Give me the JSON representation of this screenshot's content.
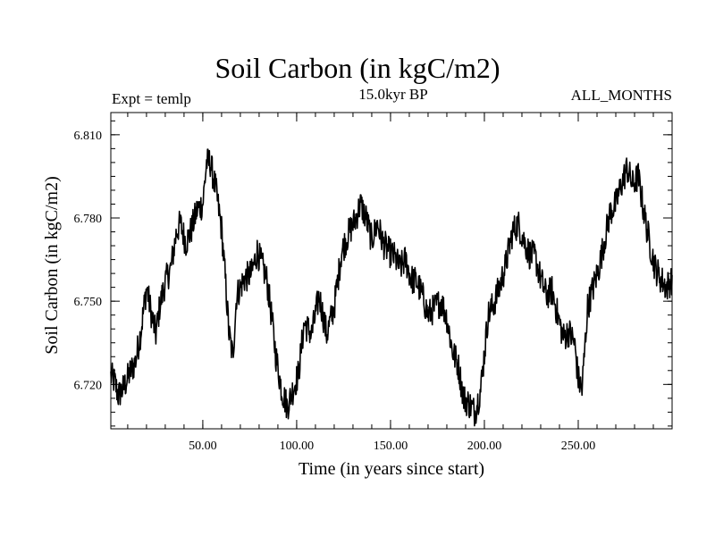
{
  "header": {
    "title": "Soil Carbon (in kgC/m2)",
    "expt": "Expt = temlp",
    "subtitle": "15.0kyr BP",
    "months": "ALL_MONTHS"
  },
  "chart_data": {
    "type": "line",
    "title": "Soil Carbon (in kgC/m2)",
    "xlabel": "Time (in years since start)",
    "ylabel": "Soil Carbon (in kgC/m2)",
    "xlim": [
      1,
      300
    ],
    "ylim": [
      6.704,
      6.818
    ],
    "xticks": [
      50,
      100,
      150,
      200,
      250
    ],
    "xtick_labels": [
      "50.00",
      "100.00",
      "150.00",
      "200.00",
      "250.00"
    ],
    "yticks": [
      6.72,
      6.75,
      6.78,
      6.81
    ],
    "ytick_labels": [
      "6.720",
      "6.750",
      "6.780",
      "6.810"
    ],
    "grid": false,
    "line_color": "#000000",
    "series": [
      {
        "x": [
          1,
          3,
          5,
          8,
          11,
          14,
          17,
          20,
          23,
          25,
          27,
          30,
          33,
          36,
          38,
          41,
          44,
          47,
          50,
          52,
          54,
          57,
          60,
          62,
          64,
          66,
          68,
          72,
          76,
          79,
          82,
          84,
          86,
          89,
          92,
          95,
          98,
          101,
          104,
          108,
          112,
          116,
          120,
          124,
          128,
          131,
          134,
          137,
          140,
          143,
          146,
          149,
          152,
          155,
          158,
          161,
          164,
          167,
          170,
          174,
          177,
          180,
          183,
          186,
          189,
          192,
          195,
          198,
          200,
          202,
          205,
          208,
          211,
          215,
          218,
          221,
          224,
          227,
          230,
          233,
          236,
          239,
          242,
          245,
          248,
          250,
          252,
          255,
          258,
          261,
          264,
          267,
          270,
          273,
          276,
          279,
          282,
          285,
          288,
          291,
          294,
          297,
          300
        ],
        "y": [
          6.723,
          6.721,
          6.716,
          6.719,
          6.724,
          6.728,
          6.739,
          6.755,
          6.744,
          6.738,
          6.748,
          6.757,
          6.762,
          6.775,
          6.778,
          6.771,
          6.776,
          6.783,
          6.785,
          6.8,
          6.8,
          6.79,
          6.776,
          6.758,
          6.738,
          6.73,
          6.752,
          6.758,
          6.76,
          6.768,
          6.762,
          6.758,
          6.748,
          6.73,
          6.718,
          6.712,
          6.718,
          6.724,
          6.742,
          6.738,
          6.752,
          6.738,
          6.748,
          6.768,
          6.775,
          6.779,
          6.785,
          6.78,
          6.772,
          6.778,
          6.771,
          6.768,
          6.766,
          6.762,
          6.765,
          6.758,
          6.757,
          6.752,
          6.745,
          6.748,
          6.75,
          6.744,
          6.732,
          6.727,
          6.715,
          6.713,
          6.71,
          6.718,
          6.731,
          6.745,
          6.749,
          6.755,
          6.762,
          6.775,
          6.778,
          6.772,
          6.767,
          6.766,
          6.758,
          6.752,
          6.754,
          6.745,
          6.737,
          6.739,
          6.735,
          6.722,
          6.718,
          6.748,
          6.755,
          6.762,
          6.772,
          6.782,
          6.785,
          6.792,
          6.798,
          6.792,
          6.795,
          6.782,
          6.771,
          6.762,
          6.758,
          6.755,
          6.758
        ]
      }
    ]
  }
}
